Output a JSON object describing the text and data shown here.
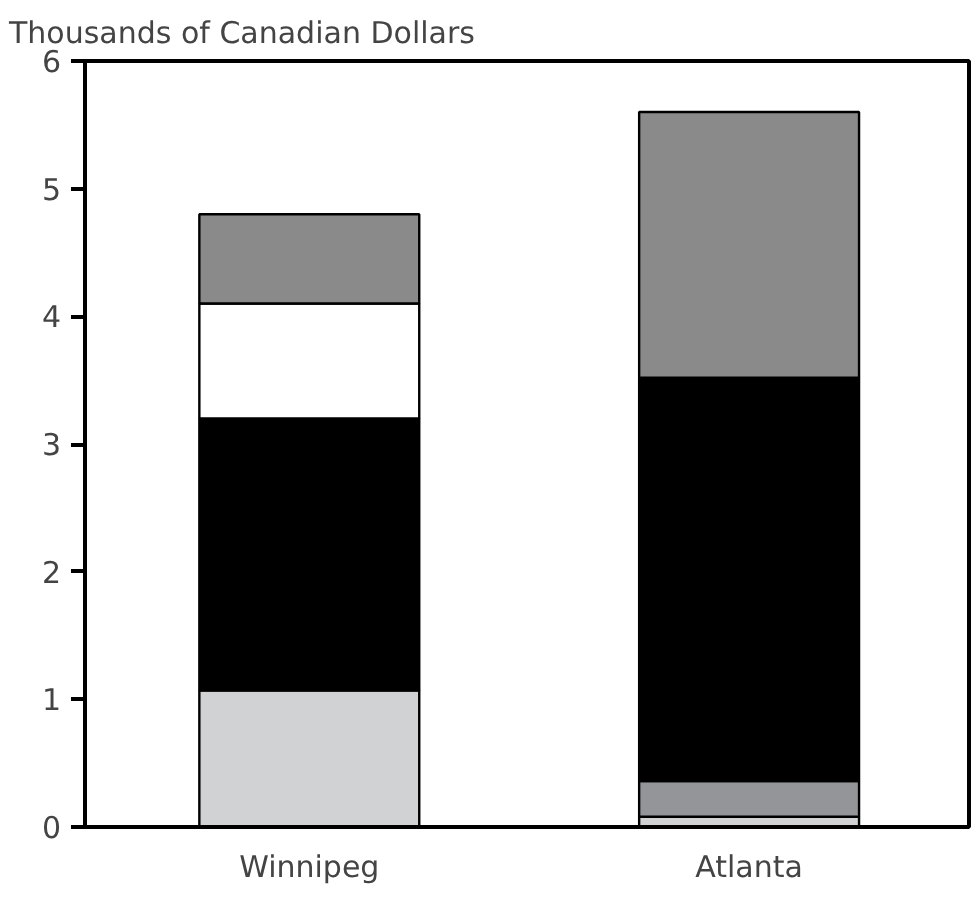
{
  "chart_data": {
    "type": "bar",
    "stacked": true,
    "ylabel": "Thousands of Canadian Dollars",
    "categories": [
      "Winnipeg",
      "Atlanta"
    ],
    "series": [
      {
        "color": "#d1d2d4",
        "values": [
          1.07,
          0.08
        ]
      },
      {
        "color": "#939598",
        "values": [
          0,
          0.28
        ]
      },
      {
        "color": "#000000",
        "values": [
          2.13,
          3.16
        ]
      },
      {
        "color": "#ffffff",
        "values": [
          0.9,
          0
        ]
      },
      {
        "color": "#8a8a8a",
        "values": [
          0.7,
          2.08
        ]
      }
    ],
    "ylim": [
      0,
      6
    ],
    "yticks": [
      0,
      1,
      2,
      3,
      4,
      5,
      6
    ],
    "grid": false
  }
}
